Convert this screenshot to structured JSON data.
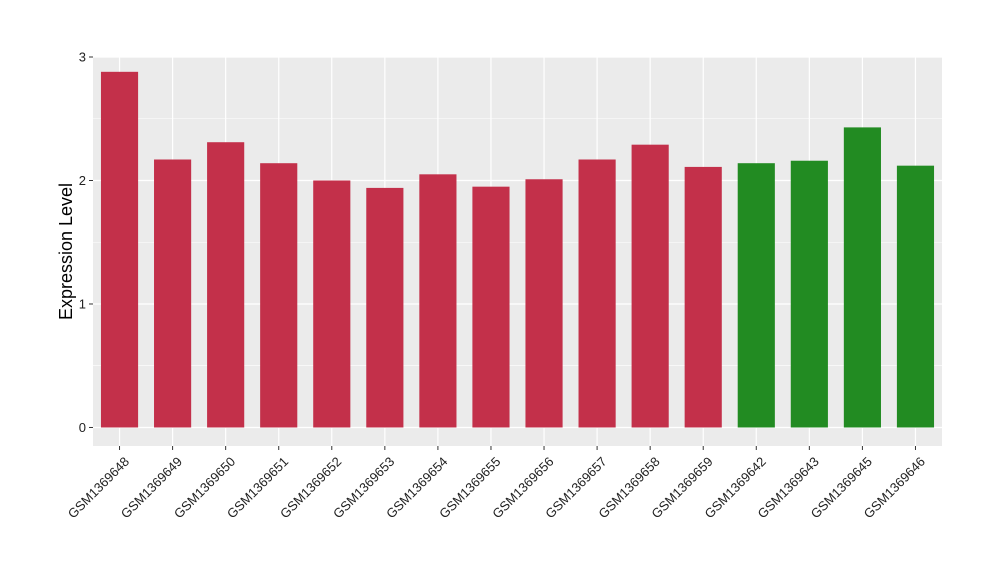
{
  "chart_data": {
    "type": "bar",
    "title": "",
    "xlabel": "",
    "ylabel": "Expression Level",
    "ylim": [
      -0.15,
      3.0
    ],
    "yticks": [
      0,
      1,
      2,
      3
    ],
    "grid": true,
    "legend": "none",
    "categories": [
      "GSM1369648",
      "GSM1369649",
      "GSM1369650",
      "GSM1369651",
      "GSM1369652",
      "GSM1369653",
      "GSM1369654",
      "GSM1369655",
      "GSM1369656",
      "GSM1369657",
      "GSM1369658",
      "GSM1369659",
      "GSM1369642",
      "GSM1369643",
      "GSM1369645",
      "GSM1369646"
    ],
    "values": [
      2.88,
      2.17,
      2.31,
      2.14,
      2.0,
      1.94,
      2.05,
      1.95,
      2.01,
      2.17,
      2.29,
      2.11,
      2.14,
      2.16,
      2.43,
      2.12
    ],
    "groups": [
      "a",
      "a",
      "a",
      "a",
      "a",
      "a",
      "a",
      "a",
      "a",
      "a",
      "a",
      "a",
      "b",
      "b",
      "b",
      "b"
    ],
    "group_colors": {
      "a": "#C3304A",
      "b": "#228B22"
    },
    "panel_background": "#EBEBEB",
    "grid_color": "#FFFFFF"
  }
}
